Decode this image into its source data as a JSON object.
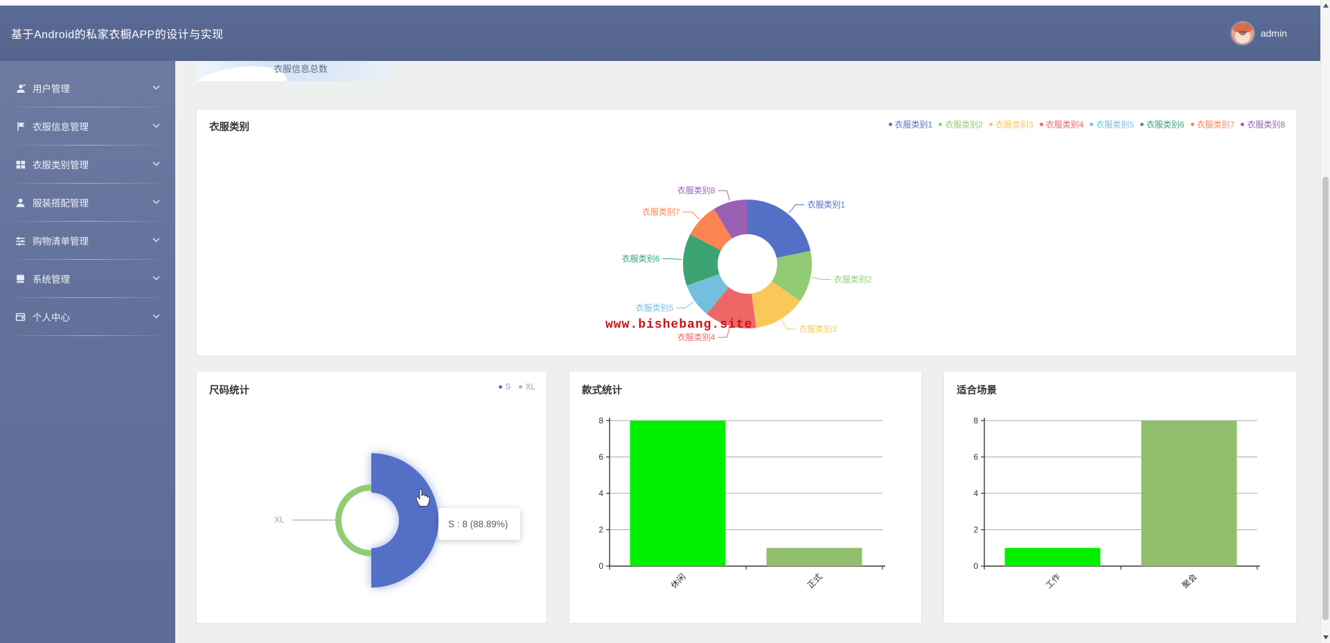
{
  "header": {
    "title": "基于Android的私家衣橱APP的设计与实现",
    "user": "admin"
  },
  "sidebar": {
    "items": [
      {
        "key": "user-management",
        "label": "用户管理",
        "icon": "users-icon"
      },
      {
        "key": "clothes-info-management",
        "label": "衣服信息管理",
        "icon": "flag-icon"
      },
      {
        "key": "clothes-category-management",
        "label": "衣服类别管理",
        "icon": "grid-icon"
      },
      {
        "key": "outfit-match-management",
        "label": "服装搭配管理",
        "icon": "user-icon"
      },
      {
        "key": "shopping-list-management",
        "label": "购物清单管理",
        "icon": "sliders-icon"
      },
      {
        "key": "system-management",
        "label": "系统管理",
        "icon": "book-icon"
      },
      {
        "key": "personal-center",
        "label": "个人中心",
        "icon": "id-card-icon"
      }
    ]
  },
  "top_partial_card": {
    "label": "衣服信息总数"
  },
  "watermark": {
    "text": "www.bishebang.site",
    "color": "#cc1111"
  },
  "colors": {
    "header_bg": "#5a6b96",
    "sidebar_bg": "#62719a",
    "content_bg": "#eef0f0",
    "bright_green": "#00f000",
    "muted_green": "#92bf6e",
    "series_blue": "#5470c6",
    "series_green": "#91cc75"
  },
  "chart_data": [
    {
      "id": "clothes-category-pie",
      "type": "pie",
      "title": "衣服类别",
      "labels": [
        "衣服类别1",
        "衣服类别2",
        "衣服类别3",
        "衣服类别4",
        "衣服类别5",
        "衣服类别6",
        "衣服类别7",
        "衣服类别8"
      ],
      "values": [
        5,
        3,
        3,
        3,
        2,
        3,
        2,
        2
      ],
      "colors": [
        "#5470c6",
        "#91cc75",
        "#fac858",
        "#ee6666",
        "#73c0de",
        "#3ba272",
        "#fc8452",
        "#9a60b4"
      ],
      "legend": [
        "衣服类别1",
        "衣服类别2",
        "衣服类别3",
        "衣服类别4",
        "衣服类别5",
        "衣服类别6",
        "衣服类别7",
        "衣服类别8"
      ],
      "legend_position": "top-right",
      "donut": true
    },
    {
      "id": "size-pie",
      "type": "pie",
      "title": "尺码统计",
      "labels": [
        "S",
        "XL"
      ],
      "values": [
        8,
        1
      ],
      "percents": [
        88.89,
        11.11
      ],
      "colors": [
        "#5470c6",
        "#91cc75"
      ],
      "legend": [
        "S",
        "XL"
      ],
      "rose_type": "area",
      "hovered_slice": "S",
      "tooltip": "S : 8 (88.89%)",
      "visible_label": "XL"
    },
    {
      "id": "style-bar",
      "type": "bar",
      "title": "款式统计",
      "categories": [
        "休闲",
        "正式"
      ],
      "values": [
        8,
        1
      ],
      "bar_colors": [
        "#00f000",
        "#92bf6e"
      ],
      "ylim": [
        0,
        8
      ],
      "yticks": [
        0,
        2,
        4,
        6,
        8
      ],
      "grid": true
    },
    {
      "id": "scene-bar",
      "type": "bar",
      "title": "适合场景",
      "categories": [
        "工作",
        "聚会"
      ],
      "values": [
        1,
        8
      ],
      "bar_colors": [
        "#00f000",
        "#92bf6e"
      ],
      "ylim": [
        0,
        8
      ],
      "yticks": [
        0,
        2,
        4,
        6,
        8
      ],
      "grid": true
    }
  ]
}
